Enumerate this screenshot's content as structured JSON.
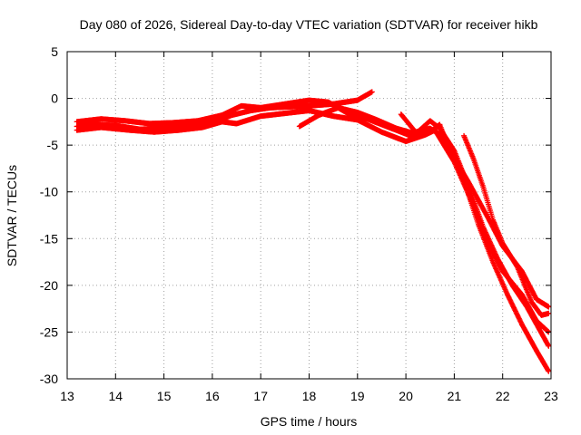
{
  "chart_data": {
    "type": "scatter",
    "title": "Day 080 of 2026, Sidereal Day-to-day VTEC variation (SDTVAR) for receiver hikb",
    "xlabel": "GPS time / hours",
    "ylabel": "SDTVAR / TECUs",
    "xlim": [
      13,
      23
    ],
    "ylim": [
      -30,
      5
    ],
    "xticks": [
      "13",
      "14",
      "15",
      "16",
      "17",
      "18",
      "19",
      "20",
      "21",
      "22",
      "23"
    ],
    "yticks": [
      "5",
      "0",
      "-5",
      "-10",
      "-15",
      "-20",
      "-25",
      "-30"
    ],
    "grid": true,
    "marker": "plus",
    "color": "#ff0000",
    "series": [
      {
        "name": "day-1",
        "points": [
          [
            13.2,
            -3.0
          ],
          [
            13.6,
            -2.8
          ],
          [
            14.0,
            -2.9
          ],
          [
            14.5,
            -3.3
          ],
          [
            15.0,
            -3.2
          ],
          [
            15.5,
            -3.0
          ],
          [
            16.0,
            -2.6
          ],
          [
            16.4,
            -1.8
          ],
          [
            16.8,
            -1.3
          ],
          [
            17.2,
            -1.0
          ],
          [
            17.6,
            -0.9
          ],
          [
            18.0,
            -0.8
          ],
          [
            18.5,
            -0.6
          ],
          [
            19.0,
            -0.2
          ],
          [
            19.3,
            0.7
          ]
        ]
      },
      {
        "name": "day-2",
        "points": [
          [
            13.2,
            -2.5
          ],
          [
            13.7,
            -2.2
          ],
          [
            14.2,
            -2.4
          ],
          [
            14.7,
            -2.7
          ],
          [
            15.2,
            -2.6
          ],
          [
            15.7,
            -2.4
          ],
          [
            16.2,
            -1.8
          ],
          [
            16.6,
            -0.8
          ],
          [
            17.0,
            -1.0
          ],
          [
            17.5,
            -0.6
          ],
          [
            18.0,
            -0.2
          ],
          [
            18.4,
            -0.4
          ],
          [
            18.8,
            -1.6
          ],
          [
            19.2,
            -2.2
          ],
          [
            19.7,
            -3.2
          ],
          [
            20.2,
            -4.2
          ],
          [
            20.5,
            -3.6
          ],
          [
            20.7,
            -2.8
          ],
          [
            20.9,
            -5.5
          ],
          [
            21.3,
            -9.0
          ],
          [
            21.7,
            -12.8
          ],
          [
            22.0,
            -15.8
          ],
          [
            22.4,
            -18.5
          ],
          [
            22.7,
            -21.5
          ],
          [
            22.95,
            -22.3
          ]
        ]
      },
      {
        "name": "day-3",
        "points": [
          [
            13.2,
            -3.4
          ],
          [
            13.7,
            -3.1
          ],
          [
            14.3,
            -3.4
          ],
          [
            14.8,
            -3.6
          ],
          [
            15.3,
            -3.4
          ],
          [
            15.8,
            -3.1
          ],
          [
            16.2,
            -2.5
          ],
          [
            16.5,
            -2.7
          ],
          [
            17.0,
            -1.9
          ],
          [
            17.5,
            -1.6
          ],
          [
            18.0,
            -1.3
          ],
          [
            18.5,
            -1.9
          ],
          [
            19.0,
            -2.3
          ],
          [
            19.5,
            -3.6
          ],
          [
            20.0,
            -4.6
          ],
          [
            20.4,
            -3.9
          ],
          [
            20.6,
            -3.4
          ],
          [
            21.0,
            -6.8
          ],
          [
            21.4,
            -11.5
          ],
          [
            21.7,
            -15.5
          ],
          [
            22.0,
            -18.5
          ],
          [
            22.4,
            -21.0
          ],
          [
            22.7,
            -23.8
          ],
          [
            22.95,
            -25.0
          ]
        ]
      },
      {
        "name": "day-4",
        "points": [
          [
            17.8,
            -3.0
          ],
          [
            18.2,
            -1.8
          ],
          [
            18.6,
            -1.0
          ],
          [
            19.0,
            -1.5
          ],
          [
            19.4,
            -2.3
          ],
          [
            19.8,
            -3.2
          ],
          [
            20.2,
            -3.8
          ],
          [
            20.5,
            -2.4
          ],
          [
            20.7,
            -3.2
          ],
          [
            21.0,
            -5.6
          ],
          [
            21.3,
            -9.5
          ],
          [
            21.6,
            -13.8
          ],
          [
            21.9,
            -17.2
          ],
          [
            22.2,
            -20.0
          ],
          [
            22.5,
            -22.3
          ],
          [
            22.95,
            -26.5
          ]
        ]
      },
      {
        "name": "day-5",
        "points": [
          [
            19.9,
            -1.7
          ],
          [
            20.2,
            -3.6
          ],
          [
            20.5,
            -3.2
          ],
          [
            20.8,
            -4.2
          ],
          [
            21.2,
            -8.8
          ],
          [
            21.5,
            -13.5
          ],
          [
            21.8,
            -17.5
          ],
          [
            22.1,
            -21.0
          ],
          [
            22.4,
            -24.2
          ],
          [
            22.7,
            -27.0
          ],
          [
            22.95,
            -29.2
          ]
        ]
      },
      {
        "name": "day-6",
        "points": [
          [
            21.2,
            -4.0
          ],
          [
            21.4,
            -6.5
          ],
          [
            21.6,
            -9.5
          ],
          [
            21.8,
            -13.0
          ],
          [
            22.0,
            -15.5
          ],
          [
            22.3,
            -18.0
          ],
          [
            22.6,
            -21.8
          ],
          [
            22.8,
            -23.2
          ],
          [
            22.95,
            -23.0
          ]
        ]
      }
    ]
  }
}
